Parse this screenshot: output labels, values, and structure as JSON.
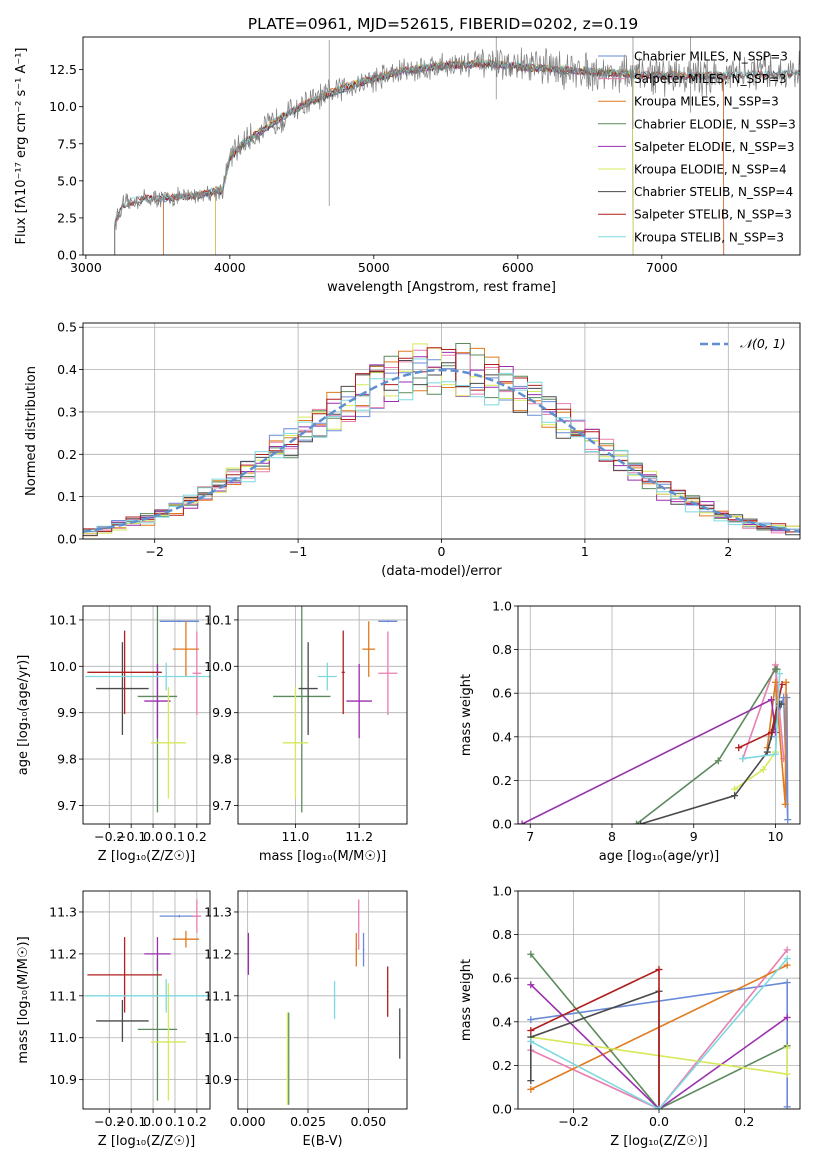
{
  "figure_title": "PLATE=0961, MJD=52615, FIBERID=0202, z=0.19",
  "colors": {
    "Chabrier MILES": "#6a8bd8",
    "Salpeter MILES": "#e87fb0",
    "Kroupa MILES": "#e07a1f",
    "Chabrier ELODIE": "#5c8a5c",
    "Salpeter ELODIE": "#9a2fae",
    "Kroupa ELODIE": "#d7e85a",
    "Chabrier STELIB": "#4a4a4a",
    "Salpeter STELIB": "#b01e1e",
    "Kroupa STELIB": "#7ed8e0",
    "data": "#7f7f7f",
    "normal": "#5f8fd0"
  },
  "chart_data": [
    {
      "type": "line",
      "panel": "spectrum",
      "title": "",
      "xlabel": "wavelength [Angstrom, rest frame]",
      "ylabel": "Flux [fλ10⁻¹⁷ erg cm⁻² s⁻¹ A⁻¹]",
      "xlim": [
        2980,
        7960
      ],
      "ylim": [
        0,
        14.7
      ],
      "xticks": [
        3000,
        4000,
        5000,
        6000,
        7000
      ],
      "yticks": [
        0.0,
        2.5,
        5.0,
        7.5,
        10.0,
        12.5
      ],
      "ytick_labels": [
        "0.0",
        "2.5",
        "5.0",
        "7.5",
        "10.0",
        "12.5"
      ],
      "legend_position": "right",
      "series_labels": [
        "Chabrier MILES, N_SSP=3",
        "Salpeter MILES, N_SSP=3",
        "Kroupa MILES, N_SSP=3",
        "Chabrier ELODIE, N_SSP=3",
        "Salpeter ELODIE, N_SSP=3",
        "Kroupa ELODIE, N_SSP=4",
        "Chabrier STELIB, N_SSP=4",
        "Salpeter STELIB, N_SSP=3",
        "Kroupa STELIB, N_SSP=3"
      ],
      "model_ranges": [
        {
          "series": "Chabrier MILES",
          "x": [
            3540,
            7430
          ]
        },
        {
          "series": "Salpeter MILES",
          "x": [
            3540,
            7430
          ]
        },
        {
          "series": "Kroupa MILES",
          "x": [
            3540,
            7430
          ]
        },
        {
          "series": "Chabrier ELODIE",
          "x": [
            3900,
            6800
          ]
        },
        {
          "series": "Salpeter ELODIE",
          "x": [
            3900,
            6800
          ]
        },
        {
          "series": "Kroupa ELODIE",
          "x": [
            3900,
            6800
          ]
        },
        {
          "series": "Chabrier STELIB",
          "x": [
            3200,
            7960
          ]
        },
        {
          "series": "Salpeter STELIB",
          "x": [
            3200,
            7960
          ]
        },
        {
          "series": "Kroupa STELIB",
          "x": [
            3200,
            7960
          ]
        }
      ],
      "continuum": {
        "x": [
          3200,
          3260,
          3400,
          3500,
          3650,
          3800,
          3950,
          4000,
          4100,
          4300,
          4500,
          4800,
          5000,
          5200,
          5500,
          5800,
          6000,
          6300,
          6600,
          7000,
          7400,
          7960
        ],
        "y": [
          2.2,
          3.4,
          3.8,
          3.8,
          3.9,
          4.1,
          4.4,
          6.6,
          7.6,
          8.9,
          10.1,
          11.3,
          11.9,
          12.4,
          12.8,
          12.9,
          12.7,
          12.5,
          12.3,
          12.1,
          12.1,
          12.3
        ]
      }
    },
    {
      "type": "bar",
      "panel": "residuals",
      "title": "",
      "xlabel": "(data-model)/error",
      "ylabel": "Normed distribution",
      "xlim": [
        -2.5,
        2.5
      ],
      "ylim": [
        0,
        0.51
      ],
      "xticks": [
        -2,
        -1,
        0,
        1,
        2
      ],
      "xtick_labels": [
        "−2",
        "−1",
        "0",
        "1",
        "2"
      ],
      "yticks": [
        0.0,
        0.1,
        0.2,
        0.3,
        0.4,
        0.5
      ],
      "ytick_labels": [
        "0.0",
        "0.1",
        "0.2",
        "0.3",
        "0.4",
        "0.5"
      ],
      "bin_width": 0.1,
      "legend_label": "𝒩(0, 1)",
      "legend_position": "top-right",
      "normal_curve": {
        "mu": 0,
        "sigma": 1
      }
    },
    {
      "type": "scatter",
      "panel": "age_vs_Z",
      "xlabel": "Z [log₁₀(Z/Z☉)]",
      "ylabel": "age  [log₁₀(age/yr)]",
      "xlim": [
        -0.32,
        0.26
      ],
      "ylim": [
        9.66,
        10.13
      ],
      "xticks": [
        -0.2,
        -0.1,
        0.0,
        0.1,
        0.2
      ],
      "xtick_labels": [
        "−0.2",
        "−0.1",
        "0.0",
        "0.1",
        "0.2"
      ],
      "yticks": [
        9.7,
        9.8,
        9.9,
        10.0,
        10.1
      ],
      "ytick_labels": [
        "9.7",
        "9.8",
        "9.9",
        "10.0",
        "10.1"
      ],
      "points": [
        {
          "series": "Chabrier MILES",
          "x": 0.12,
          "xerr": 0.09,
          "y": 10.097,
          "yerr": 0.002
        },
        {
          "series": "Salpeter MILES",
          "x": 0.2,
          "xerr": 0.02,
          "y": 9.985,
          "yerr": 0.09
        },
        {
          "series": "Kroupa MILES",
          "x": 0.15,
          "xerr": 0.06,
          "y": 10.037,
          "yerr": 0.06
        },
        {
          "series": "Chabrier ELODIE",
          "x": 0.02,
          "xerr": 0.09,
          "y": 9.935,
          "yerr": 0.25
        },
        {
          "series": "Salpeter ELODIE",
          "x": 0.02,
          "xerr": 0.06,
          "y": 9.925,
          "yerr": 0.08
        },
        {
          "series": "Kroupa ELODIE",
          "x": 0.07,
          "xerr": 0.08,
          "y": 9.835,
          "yerr": 0.12
        },
        {
          "series": "Chabrier STELIB",
          "x": -0.14,
          "xerr": 0.12,
          "y": 9.952,
          "yerr": 0.1
        },
        {
          "series": "Salpeter STELIB",
          "x": -0.13,
          "xerr": 0.17,
          "y": 9.987,
          "yerr": 0.09
        },
        {
          "series": "Kroupa STELIB",
          "x": 0.06,
          "xerr": 0.37,
          "y": 9.978,
          "yerr": 0.03
        }
      ]
    },
    {
      "type": "scatter",
      "panel": "age_vs_mass",
      "xlabel": "mass [log₁₀(M/M☉)]",
      "ylabel": "",
      "xlim": [
        10.82,
        11.35
      ],
      "ylim": [
        9.66,
        10.13
      ],
      "xticks": [
        11.0,
        11.2
      ],
      "xtick_labels": [
        "11.0",
        "11.2"
      ],
      "yticks": [
        9.7,
        9.8,
        9.9,
        10.0,
        10.1
      ],
      "ytick_labels": [
        "9.7",
        "9.8",
        "9.9",
        "10.0",
        "10.1"
      ],
      "points": [
        {
          "series": "Chabrier MILES",
          "x": 11.29,
          "xerr": 0.03,
          "y": 10.097,
          "yerr": 0.002
        },
        {
          "series": "Salpeter MILES",
          "x": 11.29,
          "xerr": 0.03,
          "y": 9.985,
          "yerr": 0.09
        },
        {
          "series": "Kroupa MILES",
          "x": 11.23,
          "xerr": 0.02,
          "y": 10.037,
          "yerr": 0.06
        },
        {
          "series": "Chabrier ELODIE",
          "x": 11.02,
          "xerr": 0.09,
          "y": 9.935,
          "yerr": 0.25
        },
        {
          "series": "Salpeter ELODIE",
          "x": 11.2,
          "xerr": 0.04,
          "y": 9.925,
          "yerr": 0.08
        },
        {
          "series": "Kroupa ELODIE",
          "x": 11.0,
          "xerr": 0.04,
          "y": 9.835,
          "yerr": 0.12
        },
        {
          "series": "Chabrier STELIB",
          "x": 11.04,
          "xerr": 0.03,
          "y": 9.952,
          "yerr": 0.1
        },
        {
          "series": "Salpeter STELIB",
          "x": 11.15,
          "xerr": 0.005,
          "y": 9.987,
          "yerr": 0.09
        },
        {
          "series": "Kroupa STELIB",
          "x": 11.1,
          "xerr": 0.03,
          "y": 9.978,
          "yerr": 0.03
        }
      ]
    },
    {
      "type": "line",
      "panel": "weight_vs_age",
      "xlabel": "age  [log₁₀(age/yr)]",
      "ylabel": "mass weight",
      "xlim": [
        6.85,
        10.3
      ],
      "ylim": [
        0,
        1.0
      ],
      "xticks": [
        7,
        8,
        9,
        10
      ],
      "xtick_labels": [
        "7",
        "8",
        "9",
        "10"
      ],
      "yticks": [
        0.0,
        0.2,
        0.4,
        0.6,
        0.8,
        1.0
      ],
      "ytick_labels": [
        "0.0",
        "0.2",
        "0.4",
        "0.6",
        "0.8",
        "1.0"
      ],
      "series": [
        {
          "name": "Chabrier MILES",
          "x": [
            9.95,
            10.1,
            10.15,
            10.14
          ],
          "y": [
            0.4,
            0.58,
            0.02,
            0.58
          ]
        },
        {
          "name": "Salpeter MILES",
          "x": [
            9.6,
            10.0,
            10.1
          ],
          "y": [
            0.3,
            0.73,
            0.3
          ]
        },
        {
          "name": "Kroupa MILES",
          "x": [
            9.9,
            10.0,
            10.12,
            10.13
          ],
          "y": [
            0.35,
            0.65,
            0.09,
            0.65
          ]
        },
        {
          "name": "Chabrier ELODIE",
          "x": [
            8.3,
            9.3,
            10.0,
            10.02
          ],
          "y": [
            0.0,
            0.29,
            0.71,
            0.71
          ]
        },
        {
          "name": "Salpeter ELODIE",
          "x": [
            6.9,
            9.95,
            10.0
          ],
          "y": [
            0.0,
            0.57,
            0.42
          ]
        },
        {
          "name": "Kroupa ELODIE",
          "x": [
            9.5,
            9.85,
            10.0
          ],
          "y": [
            0.16,
            0.25,
            0.33
          ]
        },
        {
          "name": "Chabrier STELIB",
          "x": [
            8.35,
            9.5,
            9.9,
            10.05,
            10.07
          ],
          "y": [
            0.0,
            0.13,
            0.33,
            0.55,
            0.55
          ]
        },
        {
          "name": "Salpeter STELIB",
          "x": [
            9.55,
            9.95,
            10.08
          ],
          "y": [
            0.35,
            0.42,
            0.64
          ]
        },
        {
          "name": "Kroupa STELIB",
          "x": [
            9.6,
            10.0,
            10.05
          ],
          "y": [
            0.3,
            0.32,
            0.69
          ]
        }
      ]
    },
    {
      "type": "scatter",
      "panel": "mass_vs_Z",
      "xlabel": "Z [log₁₀(Z/Z☉)]",
      "ylabel": "mass [log₁₀(M/M☉)]",
      "xlim": [
        -0.32,
        0.26
      ],
      "ylim": [
        10.83,
        11.35
      ],
      "xticks": [
        -0.2,
        -0.1,
        0.0,
        0.1,
        0.2
      ],
      "xtick_labels": [
        "−0.2",
        "−0.1",
        "0.0",
        "0.1",
        "0.2"
      ],
      "yticks": [
        10.9,
        11.0,
        11.1,
        11.2,
        11.3
      ],
      "ytick_labels": [
        "10.9",
        "11.0",
        "11.1",
        "11.2",
        "11.3"
      ],
      "points": [
        {
          "series": "Chabrier MILES",
          "x": 0.12,
          "xerr": 0.09,
          "y": 11.29,
          "yerr": 0.003
        },
        {
          "series": "Salpeter MILES",
          "x": 0.2,
          "xerr": 0.02,
          "y": 11.29,
          "yerr": 0.04
        },
        {
          "series": "Kroupa MILES",
          "x": 0.15,
          "xerr": 0.06,
          "y": 11.235,
          "yerr": 0.02
        },
        {
          "series": "Chabrier ELODIE",
          "x": 0.02,
          "xerr": 0.09,
          "y": 11.02,
          "yerr": 0.17
        },
        {
          "series": "Salpeter ELODIE",
          "x": 0.02,
          "xerr": 0.06,
          "y": 11.2,
          "yerr": 0.04
        },
        {
          "series": "Kroupa ELODIE",
          "x": 0.07,
          "xerr": 0.08,
          "y": 10.99,
          "yerr": 0.14
        },
        {
          "series": "Chabrier STELIB",
          "x": -0.14,
          "xerr": 0.12,
          "y": 11.04,
          "yerr": 0.05
        },
        {
          "series": "Salpeter STELIB",
          "x": -0.13,
          "xerr": 0.17,
          "y": 11.15,
          "yerr": 0.09
        },
        {
          "series": "Kroupa STELIB",
          "x": 0.06,
          "xerr": 0.37,
          "y": 11.1,
          "yerr": 0.04
        }
      ]
    },
    {
      "type": "scatter",
      "panel": "mass_vs_EBV",
      "xlabel": "E(B-V)",
      "ylabel": "",
      "xlim": [
        -0.004,
        0.066
      ],
      "ylim": [
        10.83,
        11.35
      ],
      "xticks": [
        0.0,
        0.025,
        0.05
      ],
      "xtick_labels": [
        "0.000",
        "0.025",
        "0.050"
      ],
      "yticks": [
        10.9,
        11.0,
        11.1,
        11.2,
        11.3
      ],
      "ytick_labels": [
        "10.9",
        "11.0",
        "11.1",
        "11.2",
        "11.3"
      ],
      "points": [
        {
          "series": "Chabrier MILES",
          "x": 0.048,
          "xerr": 0.0003,
          "y": 11.21,
          "yerr": 0.04
        },
        {
          "series": "Salpeter MILES",
          "x": 0.046,
          "xerr": 0.0003,
          "y": 11.27,
          "yerr": 0.06
        },
        {
          "series": "Kroupa MILES",
          "x": 0.045,
          "xerr": 0.0003,
          "y": 11.21,
          "yerr": 0.04
        },
        {
          "series": "Chabrier ELODIE",
          "x": 0.017,
          "xerr": 0.0003,
          "y": 10.95,
          "yerr": 0.11
        },
        {
          "series": "Salpeter ELODIE",
          "x": 0.0003,
          "xerr": 0.0003,
          "y": 11.2,
          "yerr": 0.05
        },
        {
          "series": "Kroupa ELODIE",
          "x": 0.0165,
          "xerr": 0.0003,
          "y": 10.95,
          "yerr": 0.11
        },
        {
          "series": "Chabrier STELIB",
          "x": 0.063,
          "xerr": 0.0003,
          "y": 11.01,
          "yerr": 0.06
        },
        {
          "series": "Salpeter STELIB",
          "x": 0.058,
          "xerr": 0.0003,
          "y": 11.11,
          "yerr": 0.06
        },
        {
          "series": "Kroupa STELIB",
          "x": 0.036,
          "xerr": 0.0003,
          "y": 11.09,
          "yerr": 0.045
        }
      ]
    },
    {
      "type": "line",
      "panel": "weight_vs_Z",
      "xlabel": "Z [log₁₀(Z/Z☉)]",
      "ylabel": "mass weight",
      "xlim": [
        -0.33,
        0.33
      ],
      "ylim": [
        0,
        1.0
      ],
      "xticks": [
        -0.2,
        0.0,
        0.2
      ],
      "xtick_labels": [
        "−0.2",
        "0.0",
        "0.2"
      ],
      "yticks": [
        0.0,
        0.2,
        0.4,
        0.6,
        0.8,
        1.0
      ],
      "ytick_labels": [
        "0.0",
        "0.2",
        "0.4",
        "0.6",
        "0.8",
        "1.0"
      ],
      "series": [
        {
          "name": "Chabrier MILES",
          "x": [
            -0.3,
            0.3,
            0.3
          ],
          "y": [
            0.41,
            0.58,
            0.01
          ]
        },
        {
          "name": "Salpeter MILES",
          "x": [
            -0.3,
            0.0,
            0.3
          ],
          "y": [
            0.27,
            0.0,
            0.73
          ]
        },
        {
          "name": "Kroupa MILES",
          "x": [
            -0.3,
            0.3
          ],
          "y": [
            0.09,
            0.66
          ]
        },
        {
          "name": "Chabrier ELODIE",
          "x": [
            -0.3,
            0.0,
            0.3
          ],
          "y": [
            0.71,
            0.0,
            0.29
          ]
        },
        {
          "name": "Salpeter ELODIE",
          "x": [
            -0.3,
            0.0,
            0.3
          ],
          "y": [
            0.57,
            0.0,
            0.42
          ]
        },
        {
          "name": "Kroupa ELODIE",
          "x": [
            -0.3,
            0.3,
            0.3
          ],
          "y": [
            0.33,
            0.16,
            0.28
          ]
        },
        {
          "name": "Chabrier STELIB",
          "x": [
            -0.3,
            -0.3,
            0.0,
            0.0
          ],
          "y": [
            0.13,
            0.33,
            0.54,
            0.0
          ]
        },
        {
          "name": "Salpeter STELIB",
          "x": [
            -0.3,
            0.0,
            0.0
          ],
          "y": [
            0.36,
            0.64,
            0.0
          ]
        },
        {
          "name": "Kroupa STELIB",
          "x": [
            -0.3,
            0.0,
            0.3
          ],
          "y": [
            0.31,
            0.0,
            0.69
          ]
        }
      ]
    }
  ]
}
